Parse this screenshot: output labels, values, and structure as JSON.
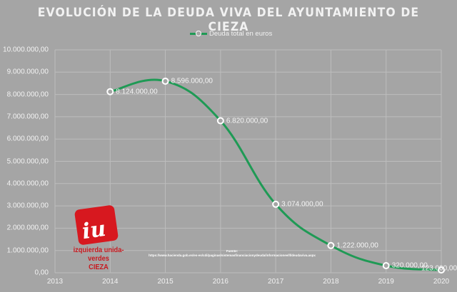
{
  "title": "EVOLUCIÓN DE LA DEUDA VIVA DEL AYUNTAMIENTO  DE CIEZA",
  "legend": {
    "label": "Deuda total en euros",
    "color": "#1f9a55"
  },
  "source": {
    "label": "Fuente:",
    "url": "https://www.hacienda.gob.es/es-es/cdi/paginas/sistemasfinanciacionydeuda/informacionee/ll/deudaviva.aspx"
  },
  "logo": {
    "mark": "iu",
    "line1": "izquierda unida-verdes",
    "line2": "CIEZA",
    "color": "#d7181f"
  },
  "y_ticks": [
    "10.000.000,00",
    "9.000.000,00",
    "8.000.000,00",
    "7.000.000,00",
    "6.000.000,00",
    "5.000.000,00",
    "4.000.000,00",
    "3.000.000,00",
    "2.000.000,00",
    "1.000.000,00",
    "0,00"
  ],
  "x_ticks": [
    "2013",
    "2014",
    "2015",
    "2016",
    "2017",
    "2018",
    "2019",
    "2020"
  ],
  "point_labels": [
    "8.124.000,00",
    "8.596.000,00",
    "6.820.000,00",
    "3.074.000,00",
    "1.222.000,00",
    "320.000,00",
    "123.000,00"
  ],
  "chart_data": {
    "type": "line",
    "title": "EVOLUCIÓN DE LA DEUDA VIVA DEL AYUNTAMIENTO DE CIEZA",
    "xlabel": "",
    "ylabel": "",
    "x": [
      2014,
      2015,
      2016,
      2017,
      2018,
      2019,
      2020
    ],
    "series": [
      {
        "name": "Deuda total en euros",
        "values": [
          8124000,
          8596000,
          6820000,
          3074000,
          1222000,
          320000,
          123000
        ],
        "color": "#1f9a55",
        "smooth": true
      }
    ],
    "xlim": [
      2013,
      2020
    ],
    "ylim": [
      0,
      10000000
    ],
    "y_tick_step": 1000000,
    "grid": true,
    "legend_position": "top",
    "data_labels": true
  }
}
